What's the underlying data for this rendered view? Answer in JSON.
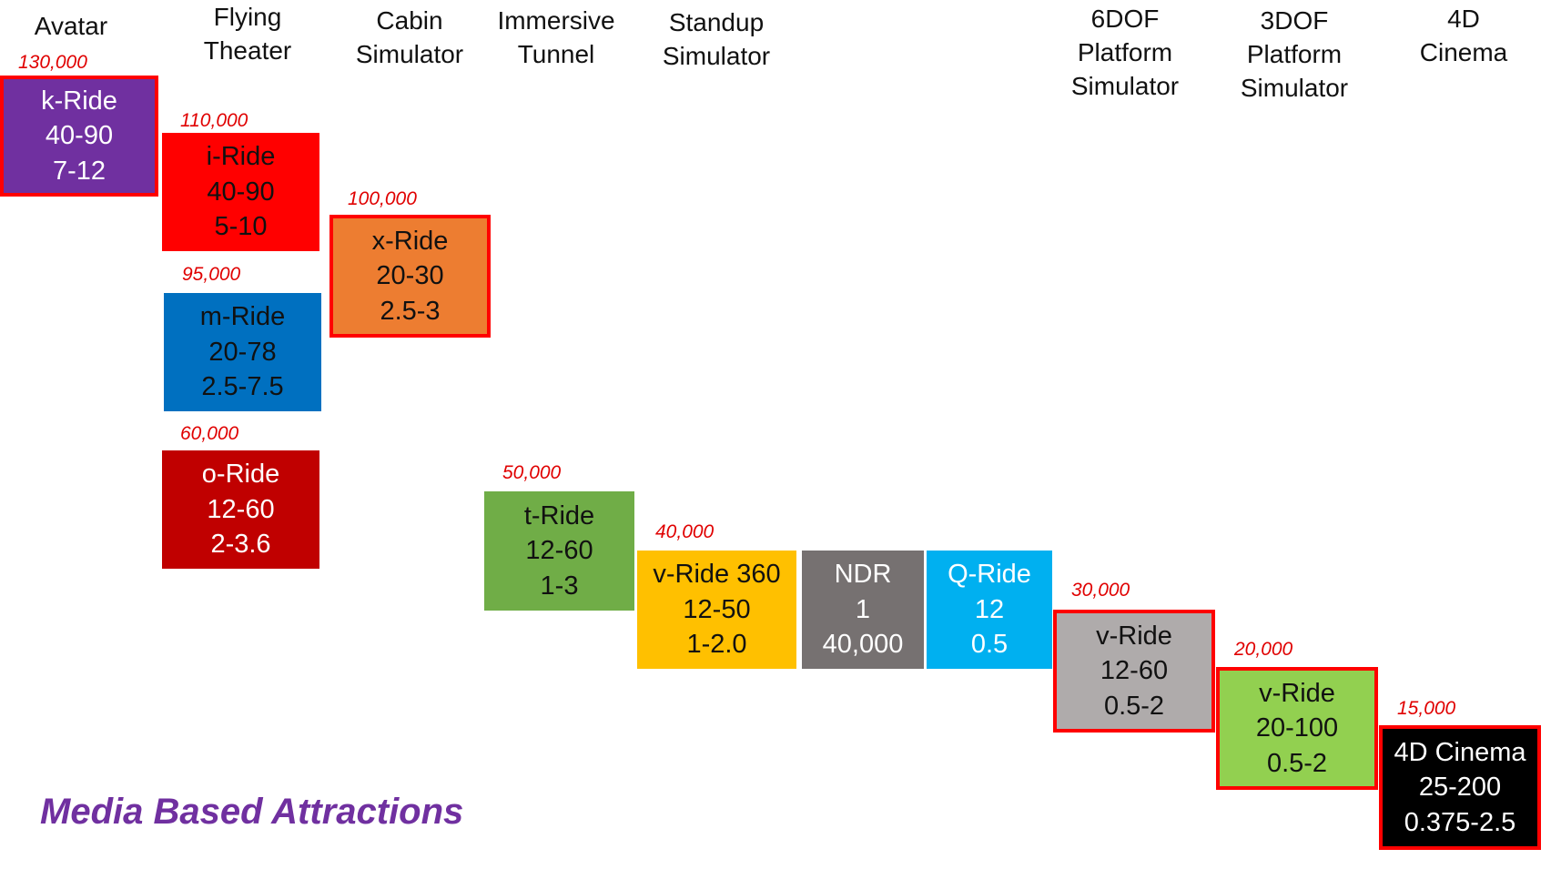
{
  "columns": [
    {
      "lines": [
        "Avatar"
      ]
    },
    {
      "lines": [
        "Flying",
        "Theater"
      ]
    },
    {
      "lines": [
        "Cabin",
        "Simulator"
      ]
    },
    {
      "lines": [
        "Immersive",
        "Tunnel"
      ]
    },
    {
      "lines": [
        "Standup",
        "Simulator"
      ]
    },
    {
      "lines": [
        "6DOF",
        "Platform",
        "Simulator"
      ]
    },
    {
      "lines": [
        "3DOF",
        "Platform",
        "Simulator"
      ]
    },
    {
      "lines": [
        "4D",
        "Cinema"
      ]
    }
  ],
  "products": [
    {
      "capacity": "130,000",
      "lines": [
        "k-Ride",
        "40-90",
        "7-12"
      ],
      "fill": "#7030a0",
      "text_color": "#ffffff",
      "outlined": true
    },
    {
      "capacity": "110,000",
      "lines": [
        "i-Ride",
        "40-90",
        "5-10"
      ],
      "fill": "#ff0000",
      "text_color": "#111111",
      "outlined": false
    },
    {
      "capacity": "95,000",
      "lines": [
        "m-Ride",
        "20-78",
        "2.5-7.5"
      ],
      "fill": "#0070c0",
      "text_color": "#111111",
      "outlined": false
    },
    {
      "capacity": "60,000",
      "lines": [
        "o-Ride",
        "12-60",
        "2-3.6"
      ],
      "fill": "#c00000",
      "text_color": "#ffffff",
      "outlined": false
    },
    {
      "capacity": "100,000",
      "lines": [
        "x-Ride",
        "20-30",
        "2.5-3"
      ],
      "fill": "#ed7d31",
      "text_color": "#111111",
      "outlined": true
    },
    {
      "capacity": "50,000",
      "lines": [
        "t-Ride",
        "12-60",
        "1-3"
      ],
      "fill": "#70ad47",
      "text_color": "#111111",
      "outlined": false
    },
    {
      "capacity": "40,000",
      "lines": [
        "v-Ride 360",
        "12-50",
        "1-2.0"
      ],
      "fill": "#ffc000",
      "text_color": "#111111",
      "outlined": false
    },
    {
      "capacity": "",
      "lines": [
        "NDR",
        "1",
        "40,000"
      ],
      "fill": "#767171",
      "text_color": "#ffffff",
      "outlined": false
    },
    {
      "capacity": "",
      "lines": [
        "Q-Ride",
        "12",
        "0.5"
      ],
      "fill": "#00b0f0",
      "text_color": "#ffffff",
      "outlined": false
    },
    {
      "capacity": "30,000",
      "lines": [
        "v-Ride",
        "12-60",
        "0.5-2"
      ],
      "fill": "#afabab",
      "text_color": "#111111",
      "outlined": true
    },
    {
      "capacity": "20,000",
      "lines": [
        "v-Ride",
        "20-100",
        "0.5-2"
      ],
      "fill": "#92d050",
      "text_color": "#111111",
      "outlined": true
    },
    {
      "capacity": "15,000",
      "lines": [
        "4D Cinema",
        "25-200",
        "0.375-2.5"
      ],
      "fill": "#000000",
      "text_color": "#ffffff",
      "outlined": true
    }
  ],
  "footer": {
    "title": "Media Based Attractions"
  }
}
